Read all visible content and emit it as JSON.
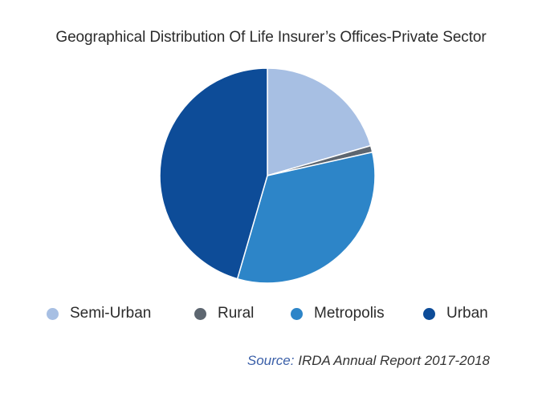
{
  "chart_data": {
    "type": "pie",
    "title": "Geographical Distribution Of Life Insurer’s Offices-Private Sector",
    "start_angle_deg": 0,
    "direction": "clockwise",
    "slices": [
      {
        "name": "Semi-Urban",
        "value": 20.5,
        "color": "#a7bfe3"
      },
      {
        "name": "Rural",
        "value": 1.0,
        "color": "#5d6670"
      },
      {
        "name": "Metropolis",
        "value": 33.0,
        "color": "#2d85c8"
      },
      {
        "name": "Urban",
        "value": 45.5,
        "color": "#0d4c98"
      }
    ],
    "legend_position": "bottom"
  },
  "source": {
    "label": "Source:",
    "text": "IRDA Annual Report 2017-2018"
  }
}
